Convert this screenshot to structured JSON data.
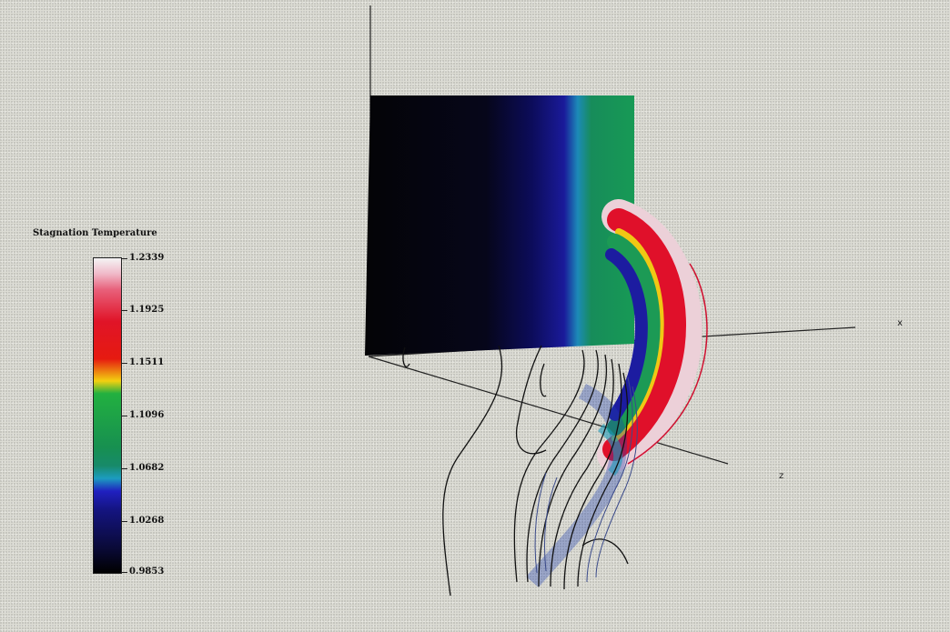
{
  "legend": {
    "title": "Stagnation Temperature",
    "ticks": [
      "1.2339",
      "1.1925",
      "1.1511",
      "1.1096",
      "1.0682",
      "1.0268",
      "0.9853"
    ]
  },
  "axes": {
    "x": "x",
    "z": "z"
  },
  "colors": {
    "background": "#dcdcd4",
    "panel_dark": "#050508",
    "shell_red": "#e0102a",
    "shell_green": "#1c9a55",
    "shell_blue": "#1c1ca0"
  }
}
